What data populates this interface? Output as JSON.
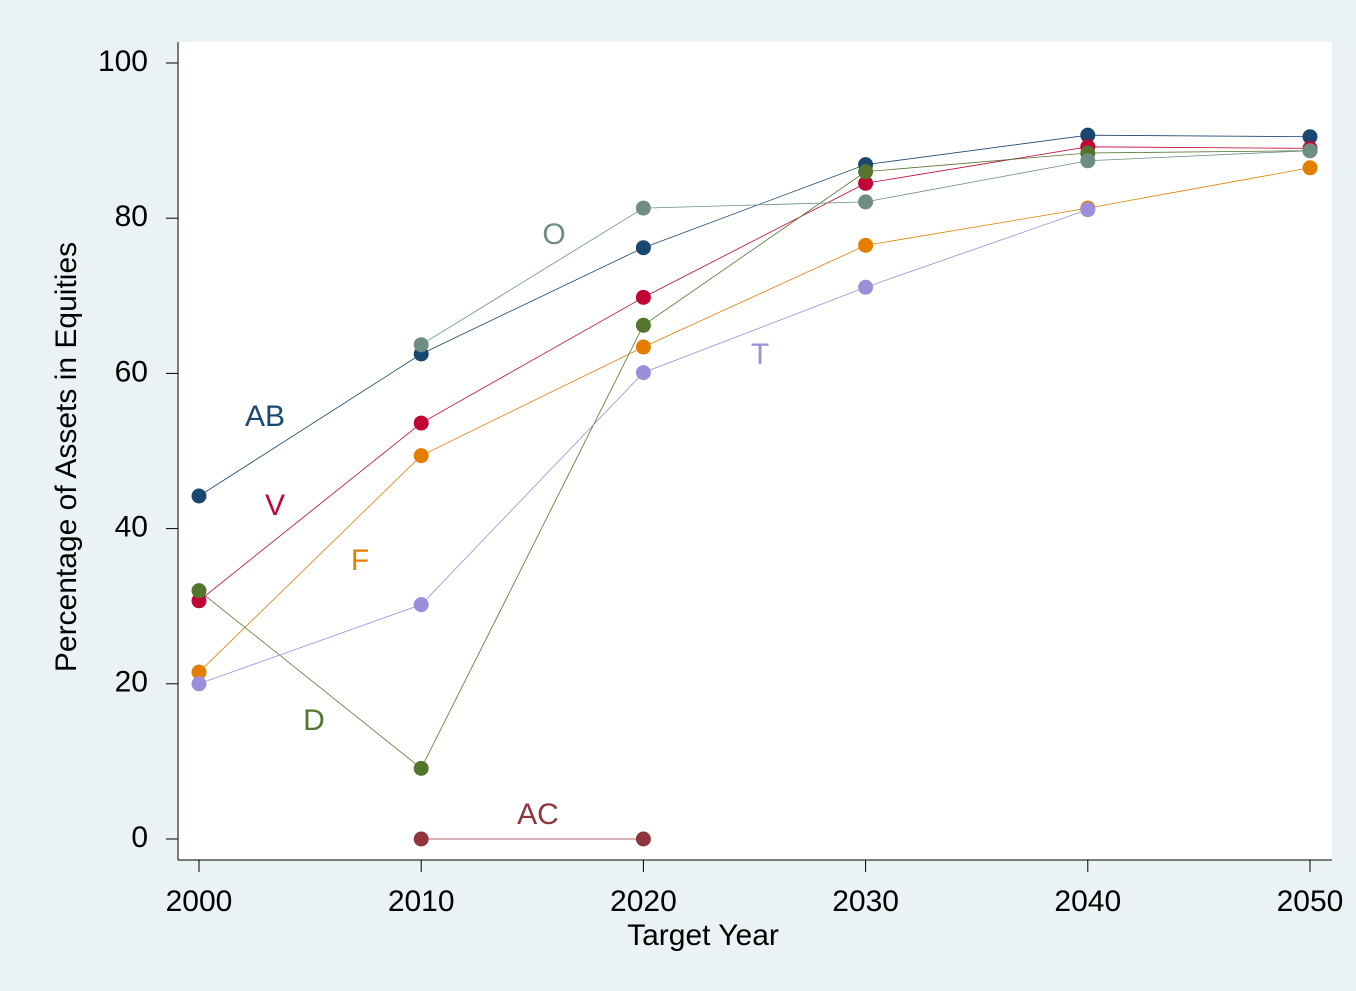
{
  "chart_data": {
    "type": "line",
    "x_label": "Target Year",
    "y_label": "Percentage of Assets in Equities",
    "x": [
      2000,
      2010,
      2020,
      2030,
      2040,
      2050
    ],
    "xlim": [
      2000,
      2050
    ],
    "xticks": [
      2000,
      2010,
      2020,
      2030,
      2040,
      2050
    ],
    "ylim": [
      0,
      100
    ],
    "yticks": [
      0,
      20,
      40,
      60,
      80,
      100
    ],
    "series": [
      {
        "name": "AB",
        "color": "#1a476f",
        "values": [
          44.2,
          62.5,
          76.2,
          86.9,
          90.7,
          90.5
        ]
      },
      {
        "name": "V",
        "color": "#c10534",
        "values": [
          30.7,
          53.6,
          69.8,
          84.5,
          89.2,
          89.0
        ]
      },
      {
        "name": "F",
        "color": "#e37e00",
        "values": [
          21.5,
          49.4,
          63.4,
          76.5,
          81.3,
          86.5
        ]
      },
      {
        "name": "D",
        "color": "#55752f",
        "values": [
          32.0,
          9.1,
          66.2,
          86.0,
          88.4,
          88.7
        ]
      },
      {
        "name": "AC",
        "color": "#90353b",
        "values": [
          null,
          0,
          0,
          null,
          null,
          null
        ]
      },
      {
        "name": "O",
        "color": "#6e8e84",
        "values": [
          null,
          63.7,
          81.3,
          82.1,
          87.4,
          88.7
        ]
      },
      {
        "name": "T",
        "color": "#9a8fd8",
        "values": [
          20.0,
          30.2,
          60.1,
          71.1,
          81.1,
          null
        ]
      }
    ]
  }
}
